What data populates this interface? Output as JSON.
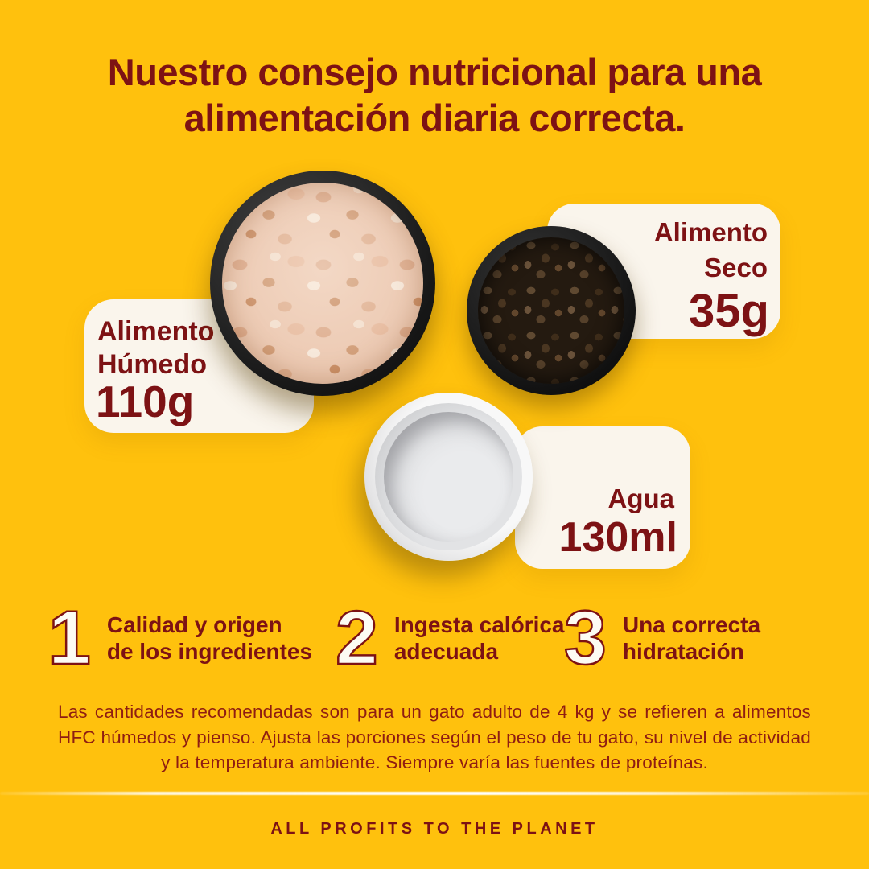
{
  "colors": {
    "background": "#FFC10D",
    "maroon_text": "#7D1214",
    "card_cream": "#FAF5EC",
    "tip_number_fill": "#FDFBF3"
  },
  "header": {
    "title_line1": "Nuestro consejo nutricional para una",
    "title_line2": "alimentación diaria correcta."
  },
  "items": {
    "wet_food": {
      "name_line1": "Alimento",
      "name_line2": "Húmedo",
      "amount": "110g"
    },
    "dry_food": {
      "name_line1": "Alimento",
      "name_line2": "Seco",
      "amount": "35g"
    },
    "water": {
      "name": "Agua",
      "amount": "130ml"
    }
  },
  "images": {
    "wet_bowl": "bowl-of-wet-cat-food-photo",
    "dry_bowl": "bowl-of-dry-kibble-photo",
    "water_bowl": "bowl-of-water-photo"
  },
  "tips": [
    {
      "number": "1",
      "line1": "Calidad y origen",
      "line2": "de los ingredientes"
    },
    {
      "number": "2",
      "line1": "Ingesta calórica",
      "line2": "adecuada"
    },
    {
      "number": "3",
      "line1": "Una correcta",
      "line2": "hidratación"
    }
  ],
  "disclaimer": "Las cantidades recomendadas son para un gato adulto de 4 kg y se refieren a alimentos HFC húmedos y pienso. Ajusta las porciones según el peso de tu gato, su nivel de actividad y la temperatura ambiente. Siempre varía las fuentes de proteínas.",
  "footer": {
    "tagline": "ALL PROFITS TO THE PLANET"
  }
}
